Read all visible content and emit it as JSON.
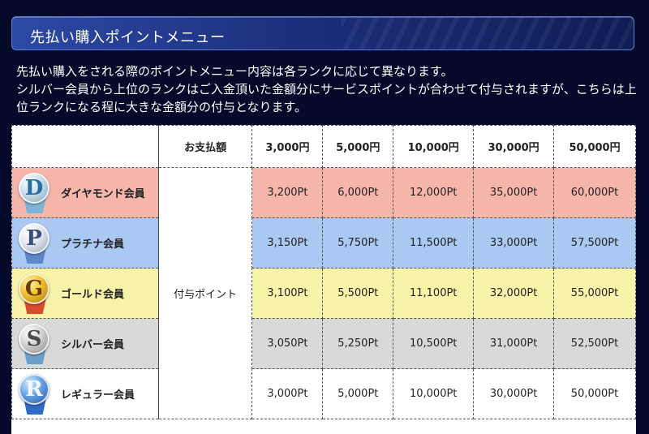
{
  "section": {
    "title": "先払い購入ポイントメニュー"
  },
  "description": {
    "line1": "先払い購入をされる際のポイントメニュー内容は各ランクに応じて異なります。",
    "line2": "シルバー会員から上位のランクはご入金頂いた金額分にサービスポイントが合わせて付与されますが、こちらは上位ランクになる程に大きな金額分の付与となります。"
  },
  "table": {
    "payment_header": "お支払額",
    "grant_label": "付与ポイント",
    "columns": [
      "3,000円",
      "5,000円",
      "10,000円",
      "30,000円",
      "50,000円"
    ],
    "rows": [
      {
        "rank": "ダイヤモンド会員",
        "letter": "D",
        "color": "#f6b5aa",
        "values": [
          "3,200Pt",
          "6,000Pt",
          "12,000Pt",
          "35,000Pt",
          "60,000Pt"
        ]
      },
      {
        "rank": "プラチナ会員",
        "letter": "P",
        "color": "#a9c8f2",
        "values": [
          "3,150Pt",
          "5,750Pt",
          "11,500Pt",
          "33,000Pt",
          "57,500Pt"
        ]
      },
      {
        "rank": "ゴールド会員",
        "letter": "G",
        "color": "#f7f3a9",
        "values": [
          "3,100Pt",
          "5,500Pt",
          "11,100Pt",
          "32,000Pt",
          "55,000Pt"
        ]
      },
      {
        "rank": "シルバー会員",
        "letter": "S",
        "color": "#d9d9d9",
        "values": [
          "3,050Pt",
          "5,250Pt",
          "10,500Pt",
          "31,000Pt",
          "52,500Pt"
        ]
      },
      {
        "rank": "レギュラー会員",
        "letter": "R",
        "color": "#ffffff",
        "values": [
          "3,000Pt",
          "5,000Pt",
          "10,000Pt",
          "30,000Pt",
          "50,000Pt"
        ]
      }
    ]
  }
}
